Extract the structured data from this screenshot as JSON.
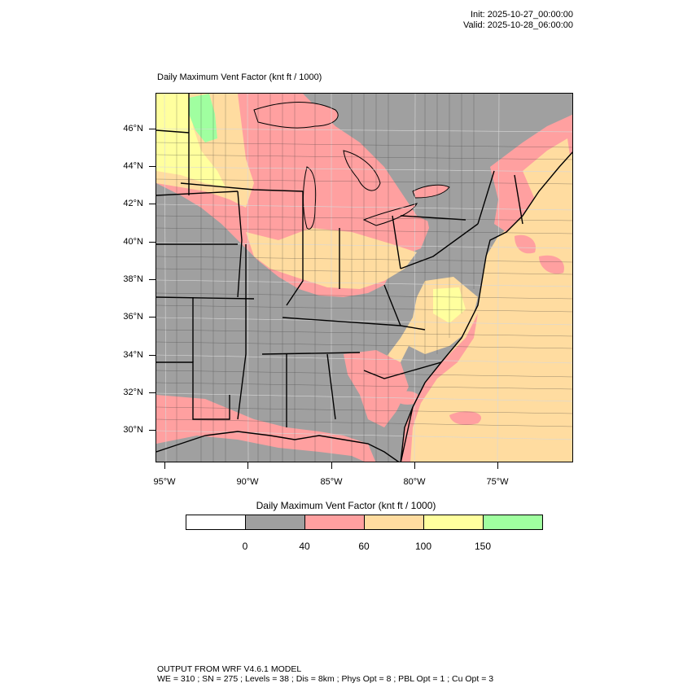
{
  "header": {
    "init": "Init: 2025-10-27_00:00:00",
    "valid": "Valid: 2025-10-28_06:00:00"
  },
  "map": {
    "title": "Daily Maximum Vent Factor   (knt ft / 1000)",
    "lat_labels": [
      "46°N",
      "44°N",
      "42°N",
      "40°N",
      "38°N",
      "36°N",
      "34°N",
      "32°N",
      "30°N"
    ],
    "lon_labels": [
      "95°W",
      "90°W",
      "85°W",
      "80°W",
      "75°W"
    ]
  },
  "legend": {
    "title": "Daily Maximum Vent Factor  (knt ft / 1000)",
    "ticks": [
      "0",
      "40",
      "60",
      "100",
      "150"
    ],
    "colors": [
      "#ffffff",
      "#a0a0a0",
      "#ffa0a0",
      "#ffdca0",
      "#ffff9e",
      "#a0ffa0"
    ]
  },
  "colors": {
    "grey": "#a0a0a0",
    "pink": "#ffa0a0",
    "tan": "#ffdca0",
    "yellow": "#ffff9e",
    "green": "#a0ffa0"
  },
  "footer": {
    "line1": "OUTPUT FROM WRF V4.6.1 MODEL",
    "line2": "WE = 310 ; SN = 275 ; Levels = 38 ; Dis = 8km ; Phys Opt = 8 ; PBL Opt = 1 ; Cu Opt = 3"
  }
}
